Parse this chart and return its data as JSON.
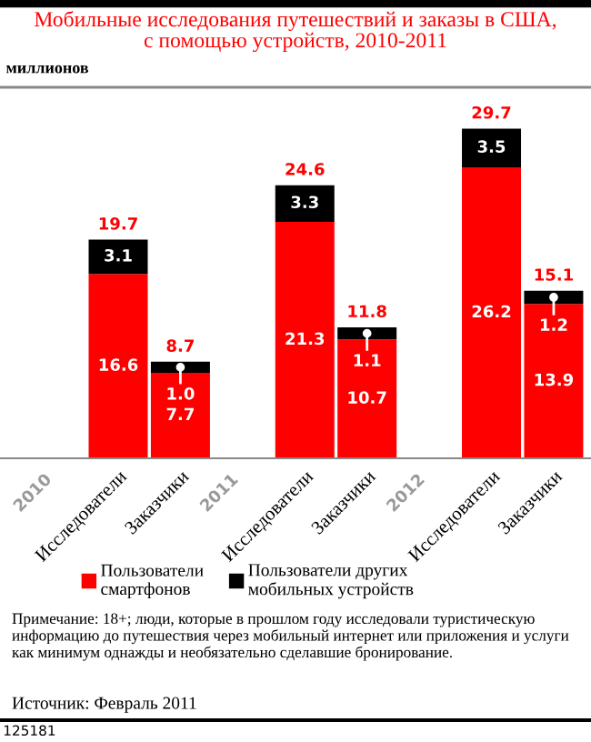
{
  "chart_data": {
    "type": "bar",
    "stacked": true,
    "title": "Мобильные исследования путешествий и заказы в США,\nс помощью устройств, 2010-2011",
    "subtitle": "миллионов",
    "categories": [
      "Исследователи",
      "Заказчики",
      "Исследователи",
      "Заказчики",
      "Исследователи",
      "Заказчики"
    ],
    "series": [
      {
        "name": "Пользователи\nсмартфонов",
        "color": "#ff0000",
        "values": [
          16.6,
          7.7,
          21.3,
          10.7,
          26.2,
          13.9
        ],
        "value_labels": [
          "16.6",
          "7.7",
          "21.3",
          "10.7",
          "26.2",
          "13.9"
        ]
      },
      {
        "name": "Пользователи других\nмобильных устройств",
        "color": "#000000",
        "values": [
          3.1,
          1.0,
          3.3,
          1.1,
          3.5,
          1.2
        ],
        "value_labels": [
          "3.1",
          "1.0",
          "3.3",
          "1.1",
          "3.5",
          "1.2"
        ]
      }
    ],
    "totals": [
      "19.7",
      "8.7",
      "24.6",
      "11.8",
      "29.7",
      "15.1"
    ],
    "tick_labels": "x",
    "legend": "bottom",
    "annotations": [
      "2010",
      "2011",
      "2012",
      "Примечание: 18+; люди, которые в прошлом году исследовали туристическую информацию до путешествия через мобильный интернет или приложения и услуги как минимум однажды и необязательно сделавшие бронирование.",
      "Источник: Февраль 2011",
      "125181"
    ]
  }
}
